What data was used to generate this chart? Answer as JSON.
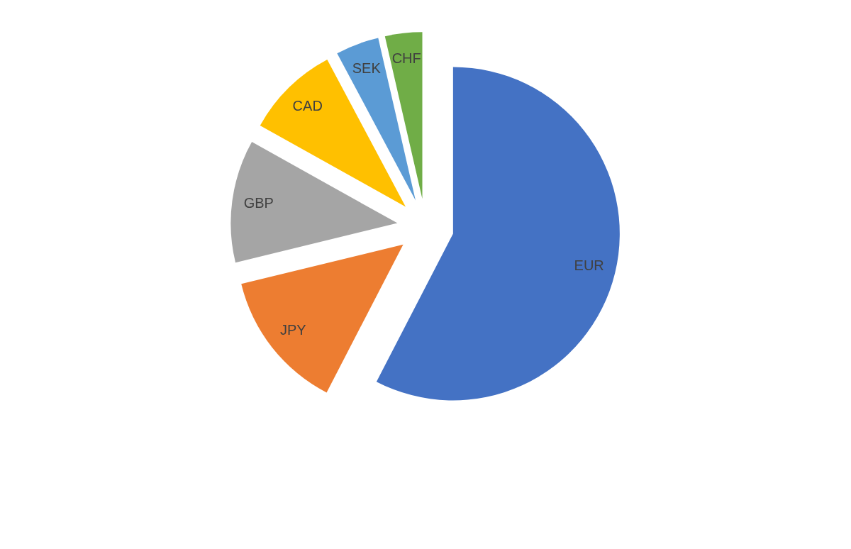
{
  "chart_data": {
    "type": "pie",
    "categories": [
      "EUR",
      "JPY",
      "GBP",
      "CAD",
      "SEK",
      "CHF"
    ],
    "values": [
      57.6,
      13.6,
      11.9,
      9.1,
      4.2,
      3.6
    ],
    "colors": [
      "#4472c4",
      "#ed7d31",
      "#a5a5a5",
      "#ffc000",
      "#5b9bd5",
      "#70ad47"
    ]
  }
}
